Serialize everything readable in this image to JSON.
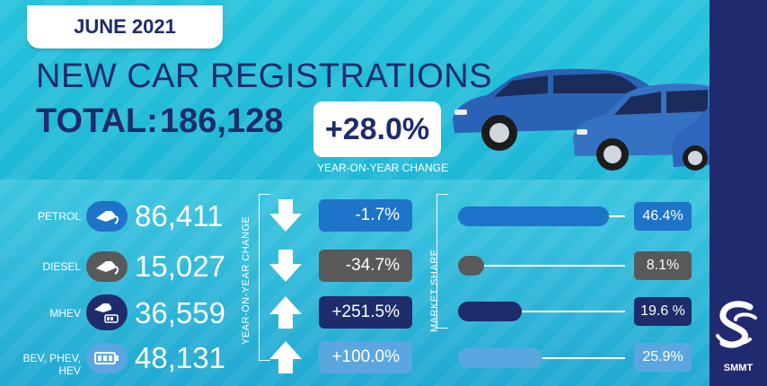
{
  "header": {
    "date": "JUNE 2021",
    "headline": "NEW CAR REGISTRATIONS",
    "total_label": "TOTAL:",
    "total_value": "186,128",
    "yoy_change": "+28.0%",
    "yoy_caption": "YEAR-ON-YEAR CHANGE"
  },
  "side_labels": {
    "yoy": "YEAR-ON-YEAR CHANGE",
    "share": "MARKET SHARE"
  },
  "rows": [
    {
      "label": "PETROL",
      "icon": "fuel-pump-icon",
      "value": "86,411",
      "direction": "down",
      "change": "-1.7%",
      "share": "46.4%",
      "share_fraction": 0.464,
      "color": "#1d74c8"
    },
    {
      "label": "DIESEL",
      "icon": "fuel-pump-icon",
      "value": "15,027",
      "direction": "down",
      "change": "-34.7%",
      "share": "8.1%",
      "share_fraction": 0.081,
      "color": "#595959"
    },
    {
      "label": "MHEV",
      "icon": "hybrid-pump-battery-icon",
      "value": "36,559",
      "direction": "up",
      "change": "+251.5%",
      "share": "19.6 %",
      "share_fraction": 0.196,
      "color": "#1e2c6b"
    },
    {
      "label": "BEV, PHEV, HEV",
      "icon": "battery-icon",
      "value": "48,131",
      "direction": "up",
      "change": "+100.0%",
      "share": "25.9%",
      "share_fraction": 0.259,
      "color": "#5aa6e0"
    }
  ],
  "brand": {
    "logo_text": "SMMT"
  }
}
